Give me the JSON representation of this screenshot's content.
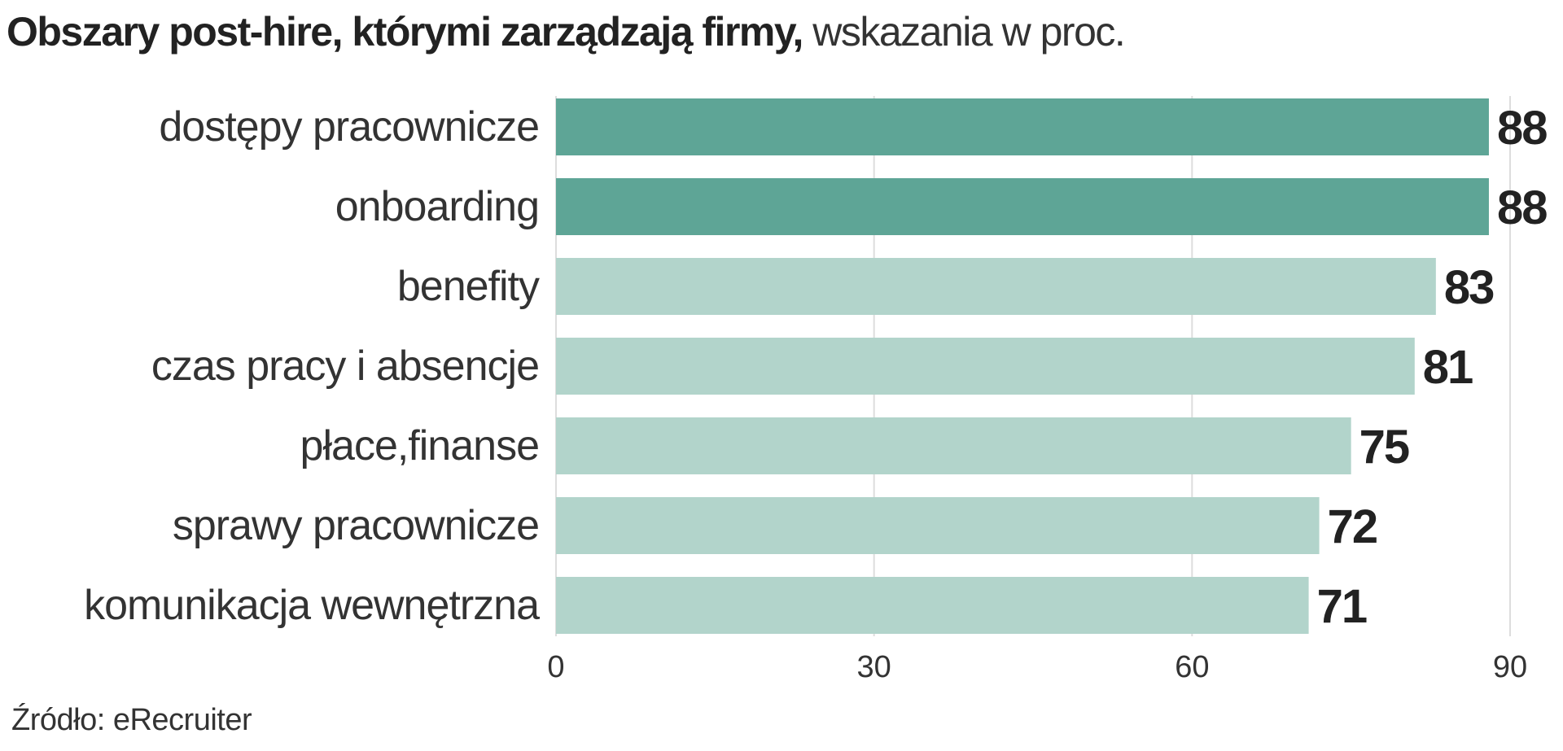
{
  "title": {
    "bold": "Obszary post-hire, którymi zarządzają firmy,",
    "light": "wskazania w proc."
  },
  "source": "Źródło: eRecruiter",
  "colors": {
    "highlight_bar": "#5ea596",
    "normal_bar": "#b2d4cb",
    "gridline": "#dddddd",
    "text": "#222222"
  },
  "chart_data": {
    "type": "bar",
    "orientation": "horizontal",
    "categories": [
      "dostępy pracownicze",
      "onboarding",
      "benefity",
      "czas pracy i absencje",
      "płace,finanse",
      "sprawy pracownicze",
      "komunikacja wewnętrzna"
    ],
    "values": [
      88,
      88,
      83,
      81,
      75,
      72,
      71
    ],
    "highlighted": [
      true,
      true,
      false,
      false,
      false,
      false,
      false
    ],
    "xlim": [
      0,
      90
    ],
    "xticks": [
      0,
      30,
      60,
      90
    ],
    "grid": true,
    "legend": "none"
  }
}
